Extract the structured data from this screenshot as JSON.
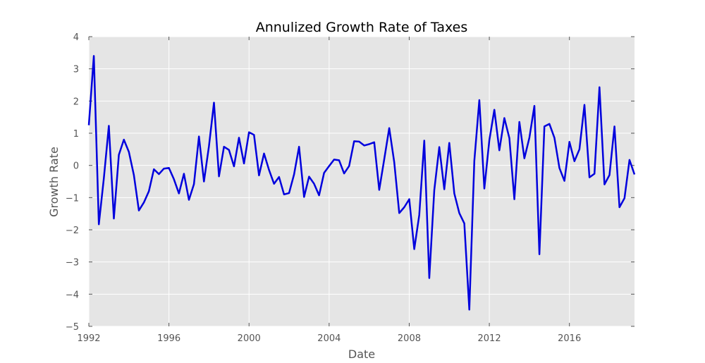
{
  "chart_data": {
    "type": "line",
    "title": "Annulized Growth Rate of Taxes",
    "xlabel": "Date",
    "ylabel": "Growth Rate",
    "xlim": [
      1992,
      2019.25
    ],
    "ylim": [
      -5,
      4
    ],
    "x_ticks": [
      "1992",
      "1996",
      "2000",
      "2004",
      "2008",
      "2012",
      "2016"
    ],
    "y_ticks": [
      "4",
      "3",
      "2",
      "1",
      "0",
      "−1",
      "−2",
      "−3",
      "−4",
      "−5"
    ],
    "grid": true,
    "legend": "none",
    "colors": {
      "line": "#0000dd",
      "plot_background": "#e5e5e5",
      "grid": "#ffffff",
      "axis_text": "#555555"
    },
    "series": [
      {
        "x": [
          1992.0,
          1992.25,
          1992.5,
          1992.75,
          1993.0,
          1993.25,
          1993.5,
          1993.75,
          1994.0,
          1994.25,
          1994.5,
          1994.75,
          1995.0,
          1995.25,
          1995.5,
          1995.75,
          1996.0,
          1996.25,
          1996.5,
          1996.75,
          1997.0,
          1997.25,
          1997.5,
          1997.75,
          1998.0,
          1998.25,
          1998.5,
          1998.75,
          1999.0,
          1999.25,
          1999.5,
          1999.75,
          2000.0,
          2000.25,
          2000.5,
          2000.75,
          2001.0,
          2001.25,
          2001.5,
          2001.75,
          2002.0,
          2002.25,
          2002.5,
          2002.75,
          2003.0,
          2003.25,
          2003.5,
          2003.75,
          2004.0,
          2004.25,
          2004.5,
          2004.75,
          2005.0,
          2005.25,
          2005.5,
          2005.75,
          2006.0,
          2006.25,
          2006.5,
          2006.75,
          2007.0,
          2007.25,
          2007.5,
          2007.75,
          2008.0,
          2008.25,
          2008.5,
          2008.75,
          2009.0,
          2009.25,
          2009.5,
          2009.75,
          2010.0,
          2010.25,
          2010.5,
          2010.75,
          2011.0,
          2011.25,
          2011.5,
          2011.75,
          2012.0,
          2012.25,
          2012.5,
          2012.75,
          2013.0,
          2013.25,
          2013.5,
          2013.75,
          2014.0,
          2014.25,
          2014.5,
          2014.75,
          2015.0,
          2015.25,
          2015.5,
          2015.75,
          2016.0,
          2016.25,
          2016.5,
          2016.75,
          2017.0,
          2017.25,
          2017.5,
          2017.75,
          2018.0,
          2018.25,
          2018.5,
          2018.75,
          2019.0,
          2019.25
        ],
        "values": [
          1.25,
          3.4,
          -1.83,
          -0.4,
          1.23,
          -1.65,
          0.33,
          0.8,
          0.42,
          -0.3,
          -1.4,
          -1.15,
          -0.8,
          -0.12,
          -0.27,
          -0.1,
          -0.08,
          -0.43,
          -0.87,
          -0.26,
          -1.07,
          -0.58,
          0.9,
          -0.5,
          0.6,
          1.95,
          -0.34,
          0.58,
          0.48,
          -0.03,
          0.86,
          0.06,
          1.03,
          0.95,
          -0.31,
          0.37,
          -0.14,
          -0.57,
          -0.36,
          -0.9,
          -0.86,
          -0.28,
          0.58,
          -0.98,
          -0.35,
          -0.57,
          -0.93,
          -0.23,
          -0.02,
          0.18,
          0.16,
          -0.25,
          -0.02,
          0.75,
          0.74,
          0.62,
          0.66,
          0.72,
          -0.76,
          0.19,
          1.16,
          0.1,
          -1.48,
          -1.3,
          -1.05,
          -2.6,
          -1.54,
          0.77,
          -3.5,
          -0.77,
          0.57,
          -0.74,
          0.7,
          -0.87,
          -1.48,
          -1.8,
          -4.48,
          0.14,
          2.03,
          -0.72,
          0.78,
          1.73,
          0.47,
          1.47,
          0.85,
          -1.05,
          1.35,
          0.22,
          0.86,
          1.85,
          -2.76,
          1.21,
          1.29,
          0.86,
          -0.08,
          -0.48,
          0.73,
          0.13,
          0.5,
          1.88,
          -0.37,
          -0.26,
          2.43,
          -0.59,
          -0.3,
          1.21,
          -1.3,
          -1.02,
          0.17,
          -0.28
        ]
      }
    ]
  }
}
